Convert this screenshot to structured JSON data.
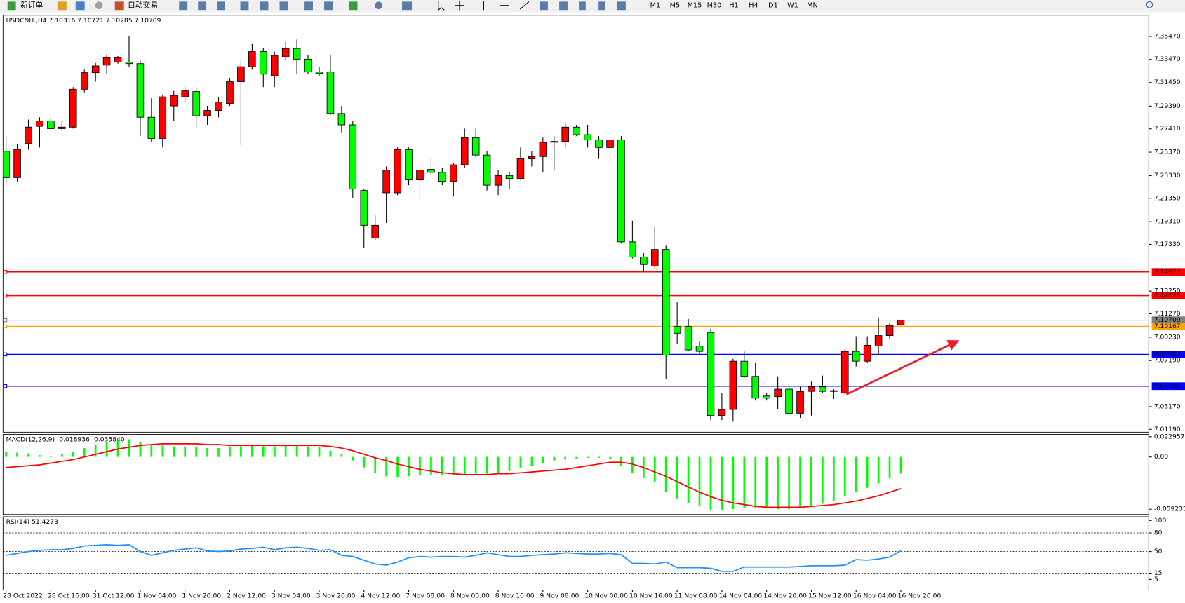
{
  "toolbar": {
    "new_order": "新订单",
    "auto_trading": "自动交易",
    "timeframes": [
      "M1",
      "M5",
      "M15",
      "M30",
      "H1",
      "H4",
      "D1",
      "W1",
      "MN"
    ]
  },
  "chart_data": [
    {
      "type": "candlestick",
      "title": "USDCNH.,H4  7.10316 7.10721 7.10285 7.10709",
      "up_color": "#ff0000",
      "down_color": "#00ff00",
      "categories": [
        "28 Oct 2022",
        null,
        null,
        null,
        "28 Oct 16:00",
        null,
        null,
        null,
        "31 Oct 12:00",
        null,
        null,
        null,
        "1 Nov 04:00",
        null,
        null,
        null,
        "1 Nov 20:00",
        null,
        null,
        null,
        "2 Nov 12:00",
        null,
        null,
        null,
        "3 Nov 04:00",
        null,
        null,
        null,
        "3 Nov 20:00",
        null,
        null,
        null,
        "4 Nov 12:00",
        null,
        null,
        null,
        "7 Nov 08:00",
        null,
        null,
        null,
        "8 Nov 00:00",
        null,
        null,
        null,
        "8 Nov 16:00",
        null,
        null,
        null,
        "9 Nov 08:00",
        null,
        null,
        null,
        "10 Nov 00:00",
        null,
        null,
        null,
        "10 Nov 16:00",
        null,
        null,
        null,
        "11 Nov 08:00",
        null,
        null,
        null,
        "14 Nov 04:00",
        null,
        null,
        null,
        "14 Nov 20:00",
        null,
        null,
        null,
        "15 Nov 12:00",
        null,
        null,
        null,
        "16 Nov 04:00",
        null,
        null,
        null,
        "16 Nov 20:00"
      ],
      "open": [
        7.2545,
        7.2315,
        7.2611,
        7.2763,
        7.2809,
        7.2743,
        7.2756,
        7.3086,
        7.3231,
        7.3297,
        7.3323,
        7.3323,
        7.331,
        7.2842,
        7.2657,
        7.2941,
        7.302,
        7.3066,
        7.2855,
        7.2901,
        7.2961,
        7.3152,
        7.3283,
        7.3415,
        7.3204,
        7.3369,
        7.3442,
        7.3349,
        7.3237,
        7.3237,
        7.2875,
        7.2776,
        7.2203,
        7.1787,
        7.2183,
        7.2183,
        7.2559,
        7.2295,
        7.2387,
        7.2361,
        7.2282,
        7.2427,
        7.2664,
        7.2512,
        7.2249,
        7.2334,
        7.2308,
        7.2479,
        7.2499,
        7.2631,
        7.2631,
        7.2756,
        7.269,
        7.2644,
        7.2578,
        7.2644,
        7.1755,
        7.1623,
        7.1544,
        7.1689,
        7.1016,
        7.1016,
        7.0845,
        7.0964,
        7.0239,
        7.0292,
        7.0713,
        7.0581,
        7.041,
        7.0404,
        7.0469,
        7.0259,
        7.045,
        7.0489,
        7.0456,
        7.0437,
        7.0799,
        7.0713,
        7.0845,
        7.0937,
        7.10316
      ],
      "high": [
        7.2677,
        7.2611,
        7.2822,
        7.2842,
        7.2842,
        7.2809,
        7.3105,
        7.3257,
        7.3316,
        7.3389,
        7.3376,
        7.3554,
        7.3336,
        7.3007,
        7.304,
        7.3072,
        7.3105,
        7.3105,
        7.2941,
        7.302,
        7.3185,
        7.3336,
        7.3481,
        7.3448,
        7.3415,
        7.3501,
        7.3521,
        7.3389,
        7.3283,
        7.3389,
        7.2941,
        7.2809,
        7.2216,
        7.1985,
        7.2413,
        7.2578,
        7.2578,
        7.2413,
        7.2479,
        7.24,
        7.2446,
        7.2743,
        7.2743,
        7.2545,
        7.238,
        7.2361,
        7.2578,
        7.2545,
        7.2664,
        7.2677,
        7.2796,
        7.2776,
        7.2776,
        7.2677,
        7.2677,
        7.2677,
        7.1939,
        7.1656,
        7.1886,
        7.1722,
        7.1227,
        7.1082,
        7.0885,
        7.0997,
        7.0437,
        7.0733,
        7.0799,
        7.07,
        7.0437,
        7.0581,
        7.0502,
        7.0489,
        7.0535,
        7.0588,
        7.0469,
        7.0819,
        7.0931,
        7.0931,
        7.1096,
        7.1043,
        7.10721
      ],
      "low": [
        7.2249,
        7.2282,
        7.2559,
        7.2578,
        7.273,
        7.2723,
        7.2743,
        7.3059,
        7.3152,
        7.3218,
        7.331,
        7.3283,
        7.2677,
        7.2624,
        7.2578,
        7.2809,
        7.2974,
        7.2756,
        7.2776,
        7.2842,
        7.2941,
        7.2598,
        7.3257,
        7.3105,
        7.3105,
        7.3336,
        7.3218,
        7.3218,
        7.3204,
        7.2862,
        7.271,
        7.2137,
        7.1702,
        7.1768,
        7.1919,
        7.2163,
        7.2249,
        7.2117,
        7.2334,
        7.2249,
        7.215,
        7.24,
        7.2493,
        7.2203,
        7.2163,
        7.2216,
        7.2295,
        7.2413,
        7.2361,
        7.238,
        7.2578,
        7.2677,
        7.2578,
        7.2479,
        7.2446,
        7.1741,
        7.161,
        7.1491,
        7.1524,
        7.0555,
        7.0865,
        7.0799,
        7.0779,
        7.0199,
        7.0199,
        7.0186,
        7.0568,
        7.037,
        7.037,
        7.0292,
        7.0239,
        7.0219,
        7.0239,
        7.0437,
        7.0384,
        7.0423,
        7.0667,
        7.07,
        7.0766,
        7.0911,
        7.10285
      ],
      "close": [
        7.2315,
        7.2559,
        7.2756,
        7.2809,
        7.2743,
        7.2756,
        7.3086,
        7.3231,
        7.329,
        7.3362,
        7.3362,
        7.331,
        7.2842,
        7.2657,
        7.302,
        7.3033,
        7.3072,
        7.2855,
        7.2901,
        7.2974,
        7.3152,
        7.3283,
        7.3415,
        7.3218,
        7.3382,
        7.3442,
        7.3349,
        7.3237,
        7.3224,
        7.2875,
        7.2776,
        7.2216,
        7.1899,
        7.1899,
        7.238,
        7.2559,
        7.2295,
        7.238,
        7.2361,
        7.2282,
        7.2427,
        7.2664,
        7.2512,
        7.2249,
        7.2334,
        7.2308,
        7.2479,
        7.2499,
        7.2624,
        7.2624,
        7.2756,
        7.269,
        7.2644,
        7.2578,
        7.2644,
        7.1755,
        7.1623,
        7.1557,
        7.1689,
        7.0766,
        7.0957,
        7.0812,
        7.0799,
        7.0239,
        7.0292,
        7.0713,
        7.0581,
        7.0391,
        7.0391,
        7.0469,
        7.0259,
        7.045,
        7.0489,
        7.045,
        7.045,
        7.0799,
        7.0713,
        7.0852,
        7.0937,
        7.1023,
        7.10709
      ],
      "ylim": [
        7.0094,
        7.3732
      ],
      "yticks": [
        {
          "value": 7.3547,
          "label": "7.35470"
        },
        {
          "value": 7.3347,
          "label": "7.33470"
        },
        {
          "value": 7.3145,
          "label": "7.31450"
        },
        {
          "value": 7.2939,
          "label": "7.29390"
        },
        {
          "value": 7.2741,
          "label": "7.27410"
        },
        {
          "value": 7.2537,
          "label": "7.25370"
        },
        {
          "value": 7.2333,
          "label": "7.23330"
        },
        {
          "value": 7.2135,
          "label": "7.21350"
        },
        {
          "value": 7.1931,
          "label": "7.19310"
        },
        {
          "value": 7.1733,
          "label": "7.17330"
        },
        {
          "value": 7.1325,
          "label": "7.13250"
        },
        {
          "value": 7.1127,
          "label": "7.11270"
        },
        {
          "value": 7.0923,
          "label": "7.09230"
        },
        {
          "value": 7.0719,
          "label": "7.07190"
        },
        {
          "value": 7.0317,
          "label": "7.03170"
        },
        {
          "value": 7.0119,
          "label": "7.01190"
        }
      ],
      "levels": [
        {
          "value": 7.14928,
          "color": "#ff0000"
        },
        {
          "value": 7.12853,
          "color": "#ff0000"
        },
        {
          "value": 7.10709,
          "color": "#808080"
        },
        {
          "value": 7.10167,
          "color": "#ffa500"
        },
        {
          "value": 7.07725,
          "color": "#0000ff"
        },
        {
          "value": 7.04954,
          "color": "#0000ff"
        }
      ]
    },
    {
      "type": "bar",
      "title": "MACD(12,26,9) -0.018936 -0.035840",
      "series": [
        {
          "kind": "bar",
          "color": "#00ff00",
          "values": [
            0.006,
            0.005,
            0.004,
            0.002,
            0.001,
            0.003,
            0.006,
            0.01,
            0.014,
            0.017,
            0.019,
            0.02,
            0.017,
            0.014,
            0.013,
            0.012,
            0.012,
            0.011,
            0.01,
            0.01,
            0.011,
            0.012,
            0.013,
            0.012,
            0.012,
            0.013,
            0.013,
            0.012,
            0.011,
            0.007,
            0.003,
            -0.004,
            -0.012,
            -0.018,
            -0.022,
            -0.023,
            -0.022,
            -0.021,
            -0.02,
            -0.02,
            -0.021,
            -0.02,
            -0.019,
            -0.019,
            -0.018,
            -0.016,
            -0.013,
            -0.01,
            -0.007,
            -0.004,
            -0.003,
            -0.002,
            -0.001,
            -0.001,
            -0.002,
            -0.01,
            -0.018,
            -0.024,
            -0.028,
            -0.04,
            -0.047,
            -0.052,
            -0.055,
            -0.06,
            -0.06,
            -0.059,
            -0.058,
            -0.058,
            -0.058,
            -0.059,
            -0.059,
            -0.058,
            -0.056,
            -0.053,
            -0.05,
            -0.044,
            -0.04,
            -0.035,
            -0.03,
            -0.024,
            -0.018936
          ]
        },
        {
          "kind": "line",
          "color": "#ff0000",
          "values": [
            -0.012,
            -0.011,
            -0.01,
            -0.009,
            -0.007,
            -0.005,
            -0.003,
            0.0,
            0.003,
            0.006,
            0.009,
            0.011,
            0.013,
            0.014,
            0.015,
            0.015,
            0.015,
            0.015,
            0.014,
            0.014,
            0.013,
            0.013,
            0.013,
            0.013,
            0.013,
            0.013,
            0.013,
            0.013,
            0.013,
            0.012,
            0.01,
            0.007,
            0.003,
            -0.001,
            -0.004,
            -0.008,
            -0.011,
            -0.014,
            -0.016,
            -0.018,
            -0.019,
            -0.02,
            -0.02,
            -0.02,
            -0.019,
            -0.019,
            -0.018,
            -0.017,
            -0.016,
            -0.015,
            -0.014,
            -0.012,
            -0.01,
            -0.008,
            -0.006,
            -0.006,
            -0.008,
            -0.012,
            -0.017,
            -0.022,
            -0.028,
            -0.034,
            -0.04,
            -0.045,
            -0.049,
            -0.052,
            -0.054,
            -0.056,
            -0.057,
            -0.057,
            -0.057,
            -0.057,
            -0.056,
            -0.055,
            -0.054,
            -0.052,
            -0.05,
            -0.047,
            -0.044,
            -0.04,
            -0.03584
          ]
        }
      ],
      "ylim": [
        -0.0652,
        0.0255
      ],
      "yticks": [
        0.022957,
        {
          "value": 0,
          "label": "0.00"
        },
        -0.059235
      ]
    },
    {
      "type": "line",
      "title": "RSI(14) 51.4273",
      "series": [
        {
          "kind": "line",
          "color": "#1e90ff",
          "values": [
            44,
            47,
            50,
            52,
            53,
            53,
            55,
            59,
            60,
            61,
            60,
            61,
            50,
            44,
            48,
            52,
            54,
            56,
            51,
            50,
            51,
            54,
            55,
            57,
            53,
            56,
            57,
            55,
            52,
            53,
            44,
            42,
            36,
            30,
            28,
            33,
            40,
            42,
            41,
            42,
            42,
            41,
            44,
            48,
            45,
            42,
            42,
            44,
            45,
            46,
            48,
            47,
            46,
            46,
            47,
            45,
            31,
            31,
            30,
            33,
            24,
            24,
            24,
            23,
            18,
            18,
            25,
            25,
            25,
            25,
            25,
            26,
            27,
            27,
            27,
            28,
            37,
            36,
            38,
            41,
            51.4273
          ]
        }
      ],
      "levels": [
        80,
        50,
        15
      ],
      "ylim": [
        -12,
        106
      ],
      "yticks": [
        100,
        80,
        50,
        15,
        5
      ]
    }
  ]
}
